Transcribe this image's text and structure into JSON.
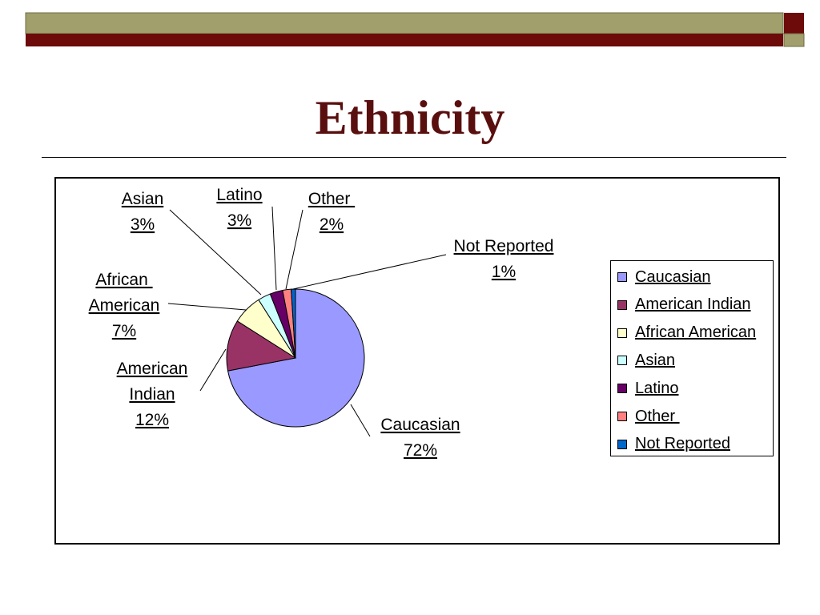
{
  "slide": {
    "title": "Ethnicity"
  },
  "theme": {
    "bar_olive": "#a19f6b",
    "bar_maroon": "#6d0a0a",
    "title_color": "#5a0f0f"
  },
  "chart_data": {
    "type": "pie",
    "title": "",
    "categories": [
      "Caucasian",
      "American Indian",
      "African American",
      "Asian",
      "Latino",
      "Other ",
      "Not Reported"
    ],
    "values": [
      72,
      12,
      7,
      3,
      3,
      2,
      1
    ],
    "value_labels": [
      "72%",
      "12%",
      "7%",
      "3%",
      "3%",
      "2%",
      "1%"
    ],
    "data_labels": [
      [
        "Caucasian",
        "72%"
      ],
      [
        "American",
        "Indian",
        "12%"
      ],
      [
        "African ",
        "American",
        "7%"
      ],
      [
        "Asian",
        "3%"
      ],
      [
        "Latino",
        "3%"
      ],
      [
        "Other ",
        "2%"
      ],
      [
        "Not Reported",
        "1%"
      ]
    ],
    "colors": [
      "#9999ff",
      "#993366",
      "#ffffcc",
      "#ccffff",
      "#660066",
      "#ff8080",
      "#0066cc"
    ],
    "legend": {
      "position": "right",
      "entries": [
        "Caucasian",
        "American Indian",
        "African American",
        "Asian",
        "Latino",
        "Other ",
        "Not Reported"
      ]
    },
    "grid": false
  }
}
